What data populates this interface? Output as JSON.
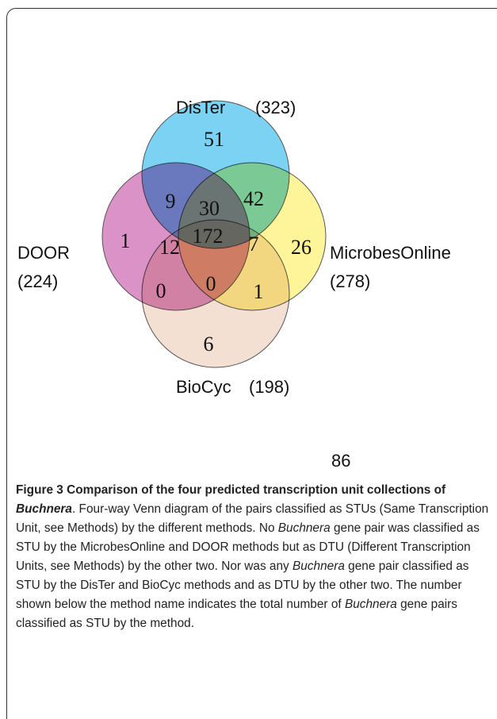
{
  "sets": [
    {
      "name": "DisTer",
      "total": "(323)",
      "color": "#4fc3ef"
    },
    {
      "name": "DOOR",
      "total": "(224)",
      "color": "#cf6fb4"
    },
    {
      "name": "MicrobesOnline",
      "total": "(278)",
      "color": "#fdf27a"
    },
    {
      "name": "BioCyc",
      "total": "(198)",
      "color": "#efd6c3"
    }
  ],
  "regions": [
    "51",
    "9",
    "30",
    "42",
    "1",
    "12",
    "172",
    "7",
    "26",
    "0",
    "0",
    "1",
    "6"
  ],
  "outside": "86",
  "caption": [
    {
      "text": "Figure 3 Comparison of the four predicted transcription unit collections of ",
      "style": "b"
    },
    {
      "text": "Buchnera",
      "style": "b i"
    },
    {
      "text": ". Four-way Venn diagram of the pairs classified as STUs (Same Transcription Unit, see Methods) by the different methods. No ",
      "style": ""
    },
    {
      "text": "Buchnera",
      "style": "i"
    },
    {
      "text": " gene pair was classified as STU by the MicrobesOnline and DOOR methods but as DTU (Different Transcription Units, see Methods) by the other two. Nor was any ",
      "style": ""
    },
    {
      "text": "Buchnera",
      "style": "i"
    },
    {
      "text": " gene pair classified as STU by the DisTer and BioCyc methods and as DTU by the other two. The number shown below the method name indicates the total number of ",
      "style": ""
    },
    {
      "text": "Buchnera",
      "style": "i"
    },
    {
      "text": " gene pairs classified as STU by the method.",
      "style": ""
    }
  ]
}
